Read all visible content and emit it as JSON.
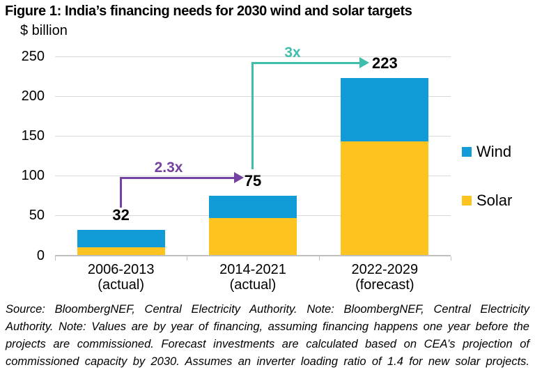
{
  "title": "Figure 1: India’s financing needs for 2030 wind and solar targets",
  "unit_label": "$ billion",
  "chart_data": {
    "type": "bar",
    "stacked": true,
    "title": "Figure 1: India’s financing needs for 2030 wind and solar targets",
    "ylabel": "$ billion",
    "xlabel": "",
    "ylim": [
      0,
      250
    ],
    "yticks": [
      0,
      50,
      100,
      150,
      200,
      250
    ],
    "grid": "horizontal",
    "legend_position": "right",
    "categories": [
      {
        "period": "2006-2013",
        "qualifier": "(actual)"
      },
      {
        "period": "2014-2021",
        "qualifier": "(actual)"
      },
      {
        "period": "2022-2029",
        "qualifier": "(forecast)"
      }
    ],
    "series": [
      {
        "name": "Solar",
        "color": "#FDC41F",
        "values": [
          10,
          47,
          143
        ]
      },
      {
        "name": "Wind",
        "color": "#119BD7",
        "values": [
          22,
          28,
          80
        ]
      }
    ],
    "totals": [
      32,
      75,
      223
    ],
    "annotations": [
      {
        "label": "2.3x",
        "color": "#7442A0",
        "from_category": "2006-2013",
        "to_category": "2014-2021"
      },
      {
        "label": "3x",
        "color": "#3EBEAB",
        "from_category": "2014-2021",
        "to_category": "2022-2029"
      }
    ]
  },
  "legend": {
    "items": [
      {
        "label": "Wind",
        "color": "#119BD7"
      },
      {
        "label": "Solar",
        "color": "#FDC41F"
      }
    ]
  },
  "footer": {
    "lines": [
      "Source: BloombergNEF, Central Electricity Authority. Note: BloombergNEF, Central Electricity",
      "Authority. Note: Values are by year of financing, assuming financing happens one year before the",
      "projects are commissioned. Forecast investments are calculated based on CEA’s projection of",
      "commissioned capacity by 2030. Assumes an inverter loading ratio of 1.4 for new solar projects."
    ]
  }
}
